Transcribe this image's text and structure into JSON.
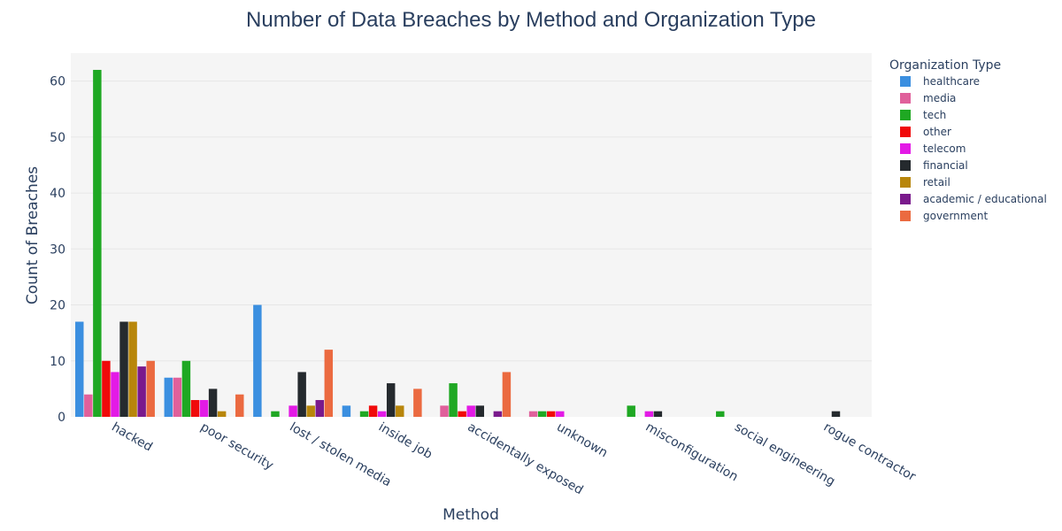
{
  "chart_data": {
    "type": "bar",
    "title": "Number of Data Breaches by Method and Organization Type",
    "xlabel": "Method",
    "ylabel": "Count of Breaches",
    "ylim": [
      0,
      65
    ],
    "yticks": [
      0,
      10,
      20,
      30,
      40,
      50,
      60
    ],
    "grid": true,
    "legend_title": "Organization Type",
    "legend_position": "right",
    "categories": [
      "hacked",
      "poor security",
      "lost / stolen media",
      "inside job",
      "accidentally exposed",
      "unknown",
      "misconfiguration",
      "social engineering",
      "rogue contractor"
    ],
    "series": [
      {
        "name": "healthcare",
        "color": "#3b8fe0",
        "values": [
          17,
          7,
          20,
          2,
          0,
          0,
          0,
          0,
          0
        ]
      },
      {
        "name": "media",
        "color": "#e0609b",
        "values": [
          4,
          7,
          0,
          0,
          2,
          1,
          0,
          0,
          0
        ]
      },
      {
        "name": "tech",
        "color": "#1fa823",
        "values": [
          62,
          10,
          1,
          1,
          6,
          1,
          2,
          1,
          0
        ]
      },
      {
        "name": "other",
        "color": "#f00a0a",
        "values": [
          10,
          3,
          0,
          2,
          1,
          1,
          0,
          0,
          0
        ]
      },
      {
        "name": "telecom",
        "color": "#e31ae6",
        "values": [
          8,
          3,
          2,
          1,
          2,
          1,
          1,
          0,
          0
        ]
      },
      {
        "name": "financial",
        "color": "#252a2e",
        "values": [
          17,
          5,
          8,
          6,
          2,
          0,
          1,
          0,
          1
        ]
      },
      {
        "name": "retail",
        "color": "#b8860b",
        "values": [
          17,
          1,
          2,
          2,
          0,
          0,
          0,
          0,
          0
        ]
      },
      {
        "name": "academic / educational",
        "color": "#7a1a8c",
        "values": [
          9,
          0,
          3,
          0,
          1,
          0,
          0,
          0,
          0
        ]
      },
      {
        "name": "government",
        "color": "#eb6a40",
        "values": [
          10,
          4,
          12,
          5,
          8,
          0,
          0,
          0,
          0
        ]
      }
    ]
  }
}
